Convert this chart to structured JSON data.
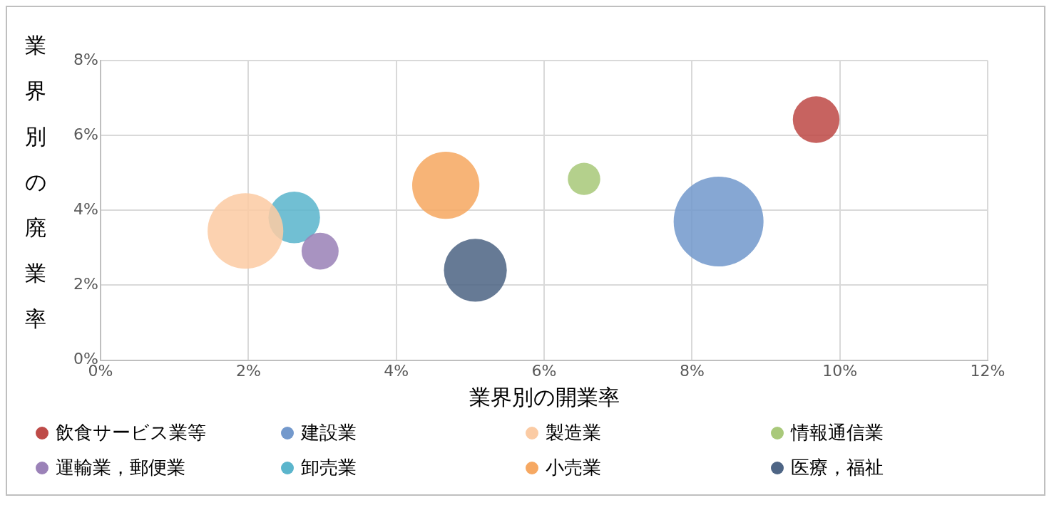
{
  "chart_data": {
    "type": "bubble",
    "xlabel": "業界別の開業率",
    "ylabel": "業界別の廃業率",
    "xlim": [
      0,
      12
    ],
    "xticks": [
      {
        "value": 0,
        "label": "0%"
      },
      {
        "value": 2,
        "label": "2%"
      },
      {
        "value": 4,
        "label": "4%"
      },
      {
        "value": 6,
        "label": "6%"
      },
      {
        "value": 8,
        "label": "8%"
      },
      {
        "value": 10,
        "label": "10%"
      },
      {
        "value": 12,
        "label": "12%"
      }
    ],
    "ylim": [
      0,
      8
    ],
    "yticks": [
      {
        "value": 0,
        "label": "0%"
      },
      {
        "value": 2,
        "label": "2%"
      },
      {
        "value": 4,
        "label": "4%"
      },
      {
        "value": 6,
        "label": "6%"
      },
      {
        "value": 8,
        "label": "8%"
      }
    ],
    "grid": true,
    "legend": "bottom",
    "series": [
      {
        "name": "飲食サービス業等",
        "color": "#be4b48",
        "x": [
          9.68
        ],
        "values": [
          6.42
        ],
        "sizes": [
          0.27
        ]
      },
      {
        "name": "建設業",
        "color": "#7399cc",
        "x": [
          8.36
        ],
        "values": [
          3.7
        ],
        "sizes": [
          1
        ]
      },
      {
        "name": "製造業",
        "color": "#fbcba4",
        "x": [
          1.96
        ],
        "values": [
          3.45
        ],
        "sizes": [
          0.71
        ]
      },
      {
        "name": "情報通信業",
        "color": "#a9c97a",
        "x": [
          6.54
        ],
        "values": [
          4.84
        ],
        "sizes": [
          0.13
        ]
      },
      {
        "name": "運輸業，郵便業",
        "color": "#9b82b8",
        "x": [
          2.97
        ],
        "values": [
          2.91
        ],
        "sizes": [
          0.17
        ]
      },
      {
        "name": "卸売業",
        "color": "#5bb5cc",
        "x": [
          2.62
        ],
        "values": [
          3.81
        ],
        "sizes": [
          0.33
        ]
      },
      {
        "name": "小売業",
        "color": "#f6a862",
        "x": [
          4.67
        ],
        "values": [
          4.67
        ],
        "sizes": [
          0.56
        ]
      },
      {
        "name": "医療，福祉",
        "color": "#4e6585",
        "x": [
          5.07
        ],
        "values": [
          2.4
        ],
        "sizes": [
          0.49
        ]
      }
    ]
  }
}
